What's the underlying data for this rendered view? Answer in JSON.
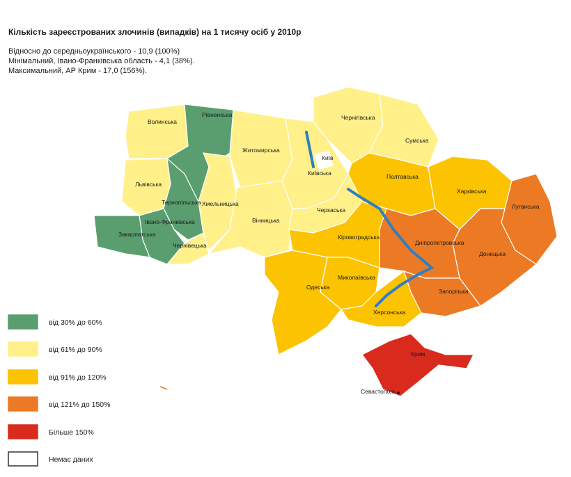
{
  "title": "Кількість зареєстрованих злочинів (випадків) на 1 тисячу осіб у 2010р",
  "subtitle_lines": [
    "Відносно до середньоукраїнського - 10,9 (100%)",
    "Мінімальний, Івано-Франківська область - 4,1 (38%).",
    "Максимальний, АР Крим - 17,0 (156%)."
  ],
  "legend": [
    {
      "label": "від 30% до 60%",
      "color": "#5a9e6f"
    },
    {
      "label": "від 61% до 90%",
      "color": "#fff08a"
    },
    {
      "label": "від 91% до 120%",
      "color": "#fcc300"
    },
    {
      "label": "від 121% до 150%",
      "color": "#ec7a24"
    },
    {
      "label": "Більше 150%",
      "color": "#d92b1d"
    },
    {
      "label": "Немає даних",
      "color": "#ffffff"
    }
  ],
  "regions": [
    {
      "name": "Волинська",
      "color": "#fff08a"
    },
    {
      "name": "Рівненська",
      "color": "#5a9e6f"
    },
    {
      "name": "Львівська",
      "color": "#fff08a"
    },
    {
      "name": "Тернопільська",
      "color": "#5a9e6f"
    },
    {
      "name": "Івано-Франківська",
      "color": "#5a9e6f"
    },
    {
      "name": "Закарпатська",
      "color": "#5a9e6f"
    },
    {
      "name": "Чернівецька",
      "color": "#fff08a"
    },
    {
      "name": "Хмельницька",
      "color": "#fff08a"
    },
    {
      "name": "Житомирська",
      "color": "#fff08a"
    },
    {
      "name": "Вінницька",
      "color": "#fff08a"
    },
    {
      "name": "Київська",
      "color": "#fff08a"
    },
    {
      "name": "Чернігівська",
      "color": "#fff08a"
    },
    {
      "name": "Сумська",
      "color": "#fff08a"
    },
    {
      "name": "Полтавська",
      "color": "#fcc300"
    },
    {
      "name": "Харківська",
      "color": "#fcc300"
    },
    {
      "name": "Луганська",
      "color": "#ec7a24"
    },
    {
      "name": "Донецька",
      "color": "#ec7a24"
    },
    {
      "name": "Дніпропетровська",
      "color": "#ec7a24"
    },
    {
      "name": "Запорізька",
      "color": "#ec7a24"
    },
    {
      "name": "Черкаська",
      "color": "#fff08a"
    },
    {
      "name": "Кіровоградська",
      "color": "#fcc300"
    },
    {
      "name": "Миколаївська",
      "color": "#fcc300"
    },
    {
      "name": "Одеська",
      "color": "#fcc300"
    },
    {
      "name": "Херсонська",
      "color": "#fcc300"
    },
    {
      "name": "Крим",
      "color": "#d92b1d"
    },
    {
      "name": "Київ",
      "color": "#ffffff"
    }
  ],
  "city_label": "Севастополь"
}
